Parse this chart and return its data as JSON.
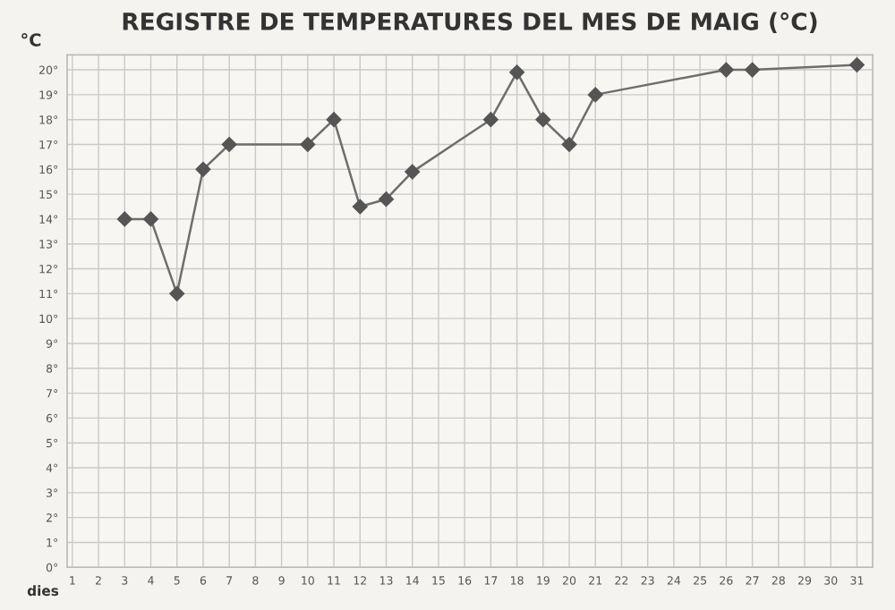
{
  "chart_data": {
    "type": "line",
    "title": "REGISTRE DE TEMPERATURES DEL MES DE MAIG (°C)",
    "xlabel": "dies",
    "ylabel": "°C",
    "x": [
      3,
      4,
      5,
      6,
      7,
      10,
      11,
      12,
      13,
      14,
      17,
      18,
      19,
      20,
      21,
      26,
      27,
      31
    ],
    "series": [
      {
        "color": "#6e6e6e",
        "values": [
          14,
          14,
          11,
          16,
          17,
          17,
          18,
          14.5,
          14.8,
          15.9,
          18,
          19.9,
          18,
          17,
          19,
          20,
          20,
          20.2
        ]
      }
    ],
    "xlim": [
      0.8,
      31.6
    ],
    "ylim": [
      0,
      20.6
    ],
    "xticks": [
      1,
      2,
      3,
      4,
      5,
      6,
      7,
      8,
      9,
      10,
      11,
      12,
      13,
      14,
      15,
      16,
      17,
      18,
      19,
      20,
      21,
      22,
      23,
      24,
      25,
      26,
      27,
      28,
      29,
      30,
      31
    ],
    "yticks": [
      {
        "value": 0,
        "label": "0°"
      },
      {
        "value": 1,
        "label": "1°"
      },
      {
        "value": 2,
        "label": "2°"
      },
      {
        "value": 3,
        "label": "3°"
      },
      {
        "value": 4,
        "label": "4°"
      },
      {
        "value": 5,
        "label": "5°"
      },
      {
        "value": 6,
        "label": "6°"
      },
      {
        "value": 7,
        "label": "7°"
      },
      {
        "value": 8,
        "label": "8°"
      },
      {
        "value": 9,
        "label": "9°"
      },
      {
        "value": 10,
        "label": "10°"
      },
      {
        "value": 11,
        "label": "11°"
      },
      {
        "value": 12,
        "label": "12°"
      },
      {
        "value": 13,
        "label": "13°"
      },
      {
        "value": 14,
        "label": "14°"
      },
      {
        "value": 15,
        "label": "15°"
      },
      {
        "value": 16,
        "label": "16°"
      },
      {
        "value": 17,
        "label": "17°"
      },
      {
        "value": 18,
        "label": "18°"
      },
      {
        "value": 19,
        "label": "19°"
      },
      {
        "value": 20,
        "label": "20°"
      }
    ],
    "grid": true,
    "marker": "diamond",
    "line_style": "solid"
  }
}
